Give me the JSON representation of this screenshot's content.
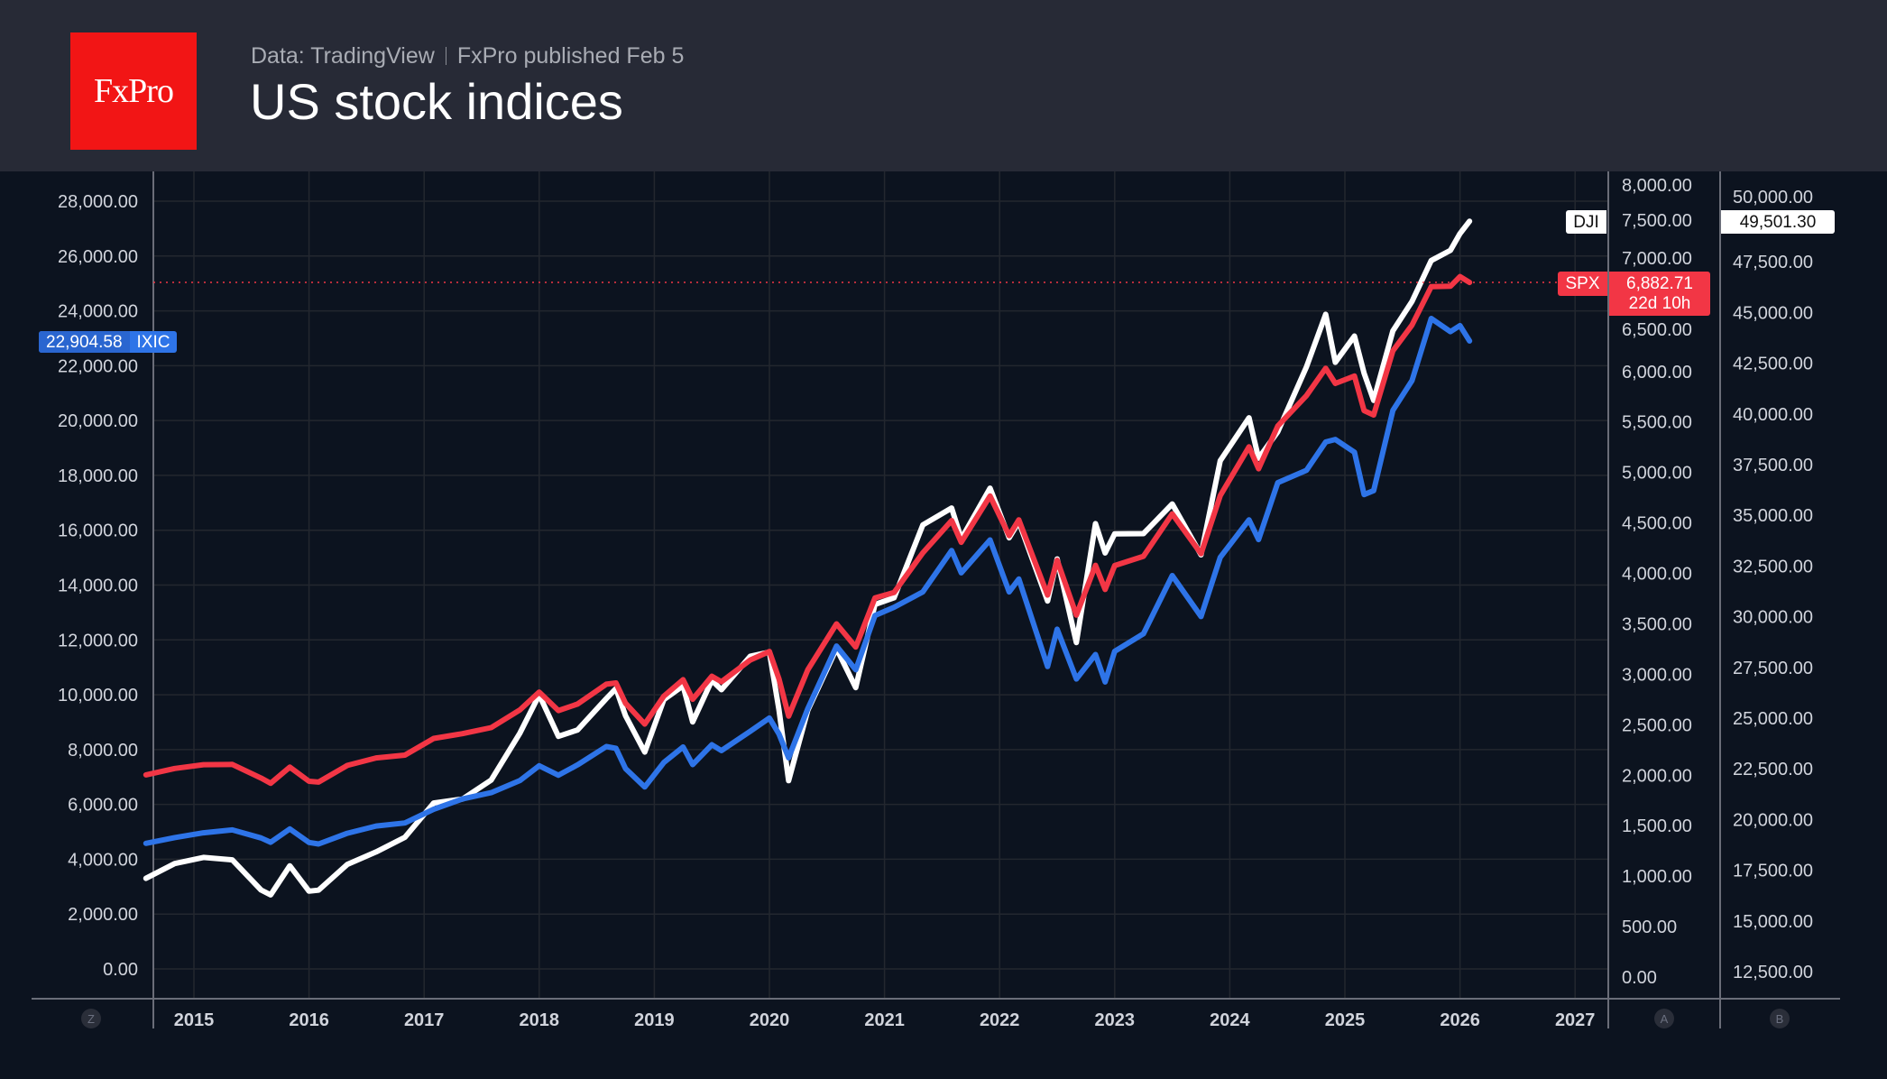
{
  "header": {
    "logo_text": "FxPro",
    "source": "Data: TradingView",
    "published": "FxPro published Feb 5",
    "title": "US stock indices"
  },
  "axis_badges": {
    "left": "Z",
    "right_a": "A",
    "right_b": "B"
  },
  "tags": {
    "ixic": {
      "name": "IXIC",
      "value": "22,904.58"
    },
    "dji": {
      "name": "DJI",
      "value": "49,501.30"
    },
    "spx": {
      "name": "SPX",
      "value": "6,882.71",
      "countdown": "22d 10h"
    }
  },
  "chart_data": {
    "type": "line",
    "title": "US stock indices",
    "grid": true,
    "x_ticks": [
      "2015",
      "2016",
      "2017",
      "2018",
      "2019",
      "2020",
      "2021",
      "2022",
      "2023",
      "2024",
      "2025",
      "2026",
      "2027"
    ],
    "axes": {
      "left": {
        "series": "IXIC",
        "range": [
          0,
          28000
        ],
        "ticks": [
          "0.00",
          "2,000.00",
          "4,000.00",
          "6,000.00",
          "8,000.00",
          "10,000.00",
          "12,000.00",
          "14,000.00",
          "16,000.00",
          "18,000.00",
          "20,000.00",
          "22,000.00",
          "24,000.00",
          "26,000.00",
          "28,000.00"
        ]
      },
      "right_a": {
        "series": "SPX",
        "range": [
          0,
          8000
        ],
        "ticks": [
          "0.00",
          "500.00",
          "1,000.00",
          "1,500.00",
          "2,000.00",
          "2,500.00",
          "3,000.00",
          "3,500.00",
          "4,000.00",
          "4,500.00",
          "5,000.00",
          "5,500.00",
          "6,000.00",
          "6,500.00",
          "7,000.00",
          "7,500.00",
          "8,000.00"
        ]
      },
      "right_b": {
        "series": "DJI",
        "range": [
          12500,
          50000
        ],
        "ticks": [
          "12,500.00",
          "15,000.00",
          "17,500.00",
          "20,000.00",
          "22,500.00",
          "25,000.00",
          "27,500.00",
          "30,000.00",
          "32,500.00",
          "35,000.00",
          "37,500.00",
          "40,000.00",
          "42,500.00",
          "45,000.00",
          "47,500.00",
          "50,000.00"
        ]
      }
    },
    "x": [
      "2014-08",
      "2014-11",
      "2015-02",
      "2015-05",
      "2015-08",
      "2015-09",
      "2015-11",
      "2016-01",
      "2016-02",
      "2016-05",
      "2016-08",
      "2016-11",
      "2017-02",
      "2017-05",
      "2017-08",
      "2017-11",
      "2018-01",
      "2018-03",
      "2018-05",
      "2018-08",
      "2018-09",
      "2018-10",
      "2018-12",
      "2019-02",
      "2019-04",
      "2019-05",
      "2019-07",
      "2019-08",
      "2019-11",
      "2020-01",
      "2020-02",
      "2020-03",
      "2020-05",
      "2020-08",
      "2020-10",
      "2020-12",
      "2021-02",
      "2021-05",
      "2021-08",
      "2021-09",
      "2021-12",
      "2022-02",
      "2022-03",
      "2022-06",
      "2022-07",
      "2022-09",
      "2022-11",
      "2022-12",
      "2023-01",
      "2023-04",
      "2023-07",
      "2023-10",
      "2023-12",
      "2024-03",
      "2024-04",
      "2024-06",
      "2024-09",
      "2024-11",
      "2024-12",
      "2025-02",
      "2025-03",
      "2025-04",
      "2025-06",
      "2025-08",
      "2025-10",
      "2025-12",
      "2026-01",
      "2026-02"
    ],
    "series": [
      {
        "name": "DJI",
        "axis": "right_b",
        "color": "#ffffff",
        "values": [
          17098,
          17828,
          18133,
          18011,
          16528,
          16285,
          17720,
          16466,
          16517,
          17787,
          18401,
          19124,
          20812,
          21009,
          21948,
          24272,
          26149,
          24103,
          24416,
          25965,
          26458,
          25116,
          23327,
          25916,
          26593,
          24815,
          26864,
          26403,
          28051,
          28256,
          25409,
          21917,
          25383,
          28430,
          26502,
          30606,
          30932,
          34529,
          35361,
          33844,
          36338,
          33893,
          34678,
          30775,
          32845,
          28726,
          34590,
          33147,
          34086,
          34098,
          35560,
          33052,
          37690,
          39807,
          37816,
          39119,
          42330,
          44910,
          42544,
          43841,
          42002,
          40669,
          44095,
          45545,
          47563,
          48063,
          48892,
          49501.3
        ]
      },
      {
        "name": "SPX",
        "axis": "right_a",
        "color": "#f23645",
        "values": [
          2003,
          2067,
          2104,
          2107,
          1972,
          1920,
          2080,
          1940,
          1932,
          2097,
          2171,
          2199,
          2364,
          2412,
          2472,
          2648,
          2824,
          2641,
          2705,
          2902,
          2914,
          2712,
          2507,
          2784,
          2946,
          2752,
          2980,
          2926,
          3141,
          3226,
          2954,
          2585,
          3044,
          3500,
          3270,
          3756,
          3811,
          4204,
          4523,
          4308,
          4766,
          4374,
          4530,
          3785,
          4130,
          3586,
          4080,
          3840,
          4077,
          4169,
          4589,
          4194,
          4770,
          5254,
          5036,
          5460,
          5762,
          6032,
          5882,
          5955,
          5612,
          5569,
          6205,
          6460,
          6840,
          6845,
          6940,
          6882.71
        ]
      },
      {
        "name": "IXIC",
        "axis": "left",
        "color": "#2e74e8",
        "values": [
          4580,
          4792,
          4964,
          5070,
          4777,
          4620,
          5108,
          4614,
          4558,
          4948,
          5213,
          5323,
          5825,
          6199,
          6429,
          6874,
          7411,
          7063,
          7442,
          8110,
          8046,
          7306,
          6635,
          7533,
          8095,
          7453,
          8175,
          7963,
          8665,
          9150,
          8567,
          7700,
          9490,
          11775,
          10911,
          12888,
          13192,
          13749,
          15259,
          14448,
          15645,
          13751,
          14220,
          11028,
          12390,
          10575,
          11468,
          10466,
          11584,
          12226,
          14346,
          12851,
          15011,
          16379,
          15657,
          17733,
          18189,
          19218,
          19310,
          18847,
          17299,
          17446,
          20370,
          21455,
          23724,
          23242,
          23462,
          22904.58
        ]
      }
    ]
  }
}
